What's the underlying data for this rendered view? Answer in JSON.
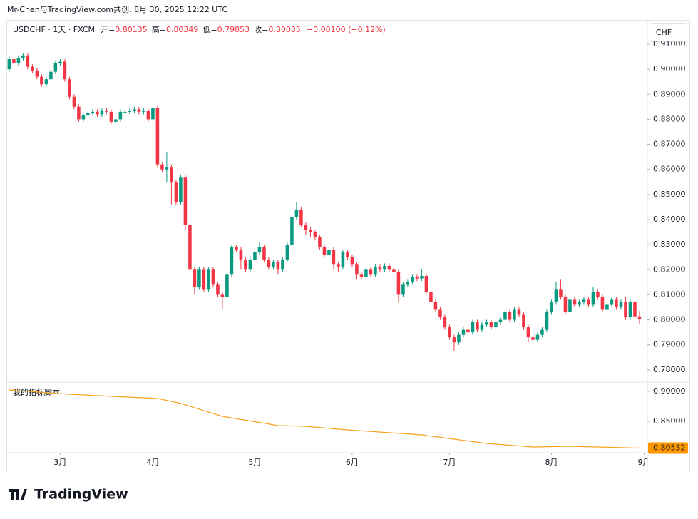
{
  "header": {
    "attribution": "Mr-Chen与TradingView.com共创, 8月 30, 2025 12:22 UTC",
    "symbol": "USDCHF · 1天 · FXCM",
    "open_label": "开=",
    "high_label": "高=",
    "low_label": "低=",
    "close_label": "收=",
    "change": "−0.00100 (−0.12%)",
    "currency": "CHF",
    "logo": "TradingView"
  },
  "chart_data": {
    "type": "candlestick",
    "up_color": "#089981",
    "down_color": "#f23645",
    "open": [
      0.9,
      0.904,
      0.9025,
      0.9045,
      0.9055,
      0.901,
      0.8995,
      0.897,
      0.894,
      0.896,
      0.899,
      0.9025,
      0.903,
      0.896,
      0.889,
      0.885,
      0.88,
      0.8815,
      0.8825,
      0.883,
      0.882,
      0.8835,
      0.883,
      0.879,
      0.88,
      0.883,
      0.883,
      0.8835,
      0.884,
      0.883,
      0.8835,
      0.88,
      0.8845,
      0.862,
      0.86,
      0.861,
      0.855,
      0.847,
      0.857,
      0.838,
      0.82,
      0.813,
      0.82,
      0.812,
      0.82,
      0.814,
      0.81,
      0.809,
      0.818,
      0.829,
      0.828,
      0.824,
      0.82,
      0.824,
      0.827,
      0.829,
      0.824,
      0.821,
      0.823,
      0.82,
      0.824,
      0.83,
      0.841,
      0.844,
      0.838,
      0.836,
      0.835,
      0.833,
      0.829,
      0.826,
      0.828,
      0.822,
      0.821,
      0.827,
      0.825,
      0.822,
      0.818,
      0.817,
      0.82,
      0.818,
      0.821,
      0.82,
      0.8215,
      0.82,
      0.819,
      0.81,
      0.814,
      0.815,
      0.817,
      0.8165,
      0.8175,
      0.811,
      0.807,
      0.804,
      0.801,
      0.797,
      0.793,
      0.791,
      0.794,
      0.796,
      0.795,
      0.799,
      0.796,
      0.798,
      0.799,
      0.797,
      0.799,
      0.8,
      0.803,
      0.8,
      0.804,
      0.802,
      0.797,
      0.793,
      0.792,
      0.794,
      0.796,
      0.803,
      0.807,
      0.812,
      0.809,
      0.803,
      0.808,
      0.806,
      0.807,
      0.808,
      0.806,
      0.811,
      0.809,
      0.804,
      0.806,
      0.808,
      0.805,
      0.807,
      0.801,
      0.807,
      0.80135
    ],
    "high": [
      0.905,
      0.905,
      0.9055,
      0.9065,
      0.9065,
      0.902,
      0.9005,
      0.898,
      0.897,
      0.9,
      0.9035,
      0.904,
      0.904,
      0.897,
      0.89,
      0.886,
      0.8825,
      0.8835,
      0.884,
      0.884,
      0.8845,
      0.8845,
      0.884,
      0.881,
      0.884,
      0.884,
      0.8845,
      0.885,
      0.885,
      0.8845,
      0.8845,
      0.8855,
      0.8855,
      0.863,
      0.867,
      0.862,
      0.856,
      0.858,
      0.858,
      0.839,
      0.821,
      0.821,
      0.821,
      0.821,
      0.821,
      0.815,
      0.811,
      0.819,
      0.83,
      0.83,
      0.829,
      0.825,
      0.825,
      0.829,
      0.831,
      0.83,
      0.825,
      0.824,
      0.824,
      0.825,
      0.831,
      0.842,
      0.847,
      0.845,
      0.839,
      0.837,
      0.836,
      0.834,
      0.83,
      0.829,
      0.829,
      0.823,
      0.828,
      0.828,
      0.826,
      0.823,
      0.819,
      0.821,
      0.821,
      0.822,
      0.822,
      0.8225,
      0.8225,
      0.821,
      0.82,
      0.815,
      0.816,
      0.818,
      0.818,
      0.82,
      0.8185,
      0.812,
      0.808,
      0.805,
      0.802,
      0.798,
      0.794,
      0.795,
      0.797,
      0.797,
      0.8,
      0.8,
      0.799,
      0.8,
      0.8,
      0.8,
      0.801,
      0.804,
      0.804,
      0.805,
      0.805,
      0.803,
      0.798,
      0.794,
      0.795,
      0.797,
      0.804,
      0.808,
      0.815,
      0.816,
      0.81,
      0.812,
      0.809,
      0.808,
      0.809,
      0.809,
      0.813,
      0.812,
      0.81,
      0.807,
      0.809,
      0.809,
      0.808,
      0.809,
      0.808,
      0.808,
      0.80349
    ],
    "low": [
      0.899,
      0.9015,
      0.9015,
      0.9035,
      0.9,
      0.8985,
      0.896,
      0.893,
      0.893,
      0.895,
      0.898,
      0.9015,
      0.895,
      0.888,
      0.884,
      0.879,
      0.879,
      0.8805,
      0.8815,
      0.881,
      0.881,
      0.882,
      0.878,
      0.878,
      0.879,
      0.882,
      0.882,
      0.8825,
      0.882,
      0.882,
      0.879,
      0.879,
      0.861,
      0.859,
      0.855,
      0.846,
      0.846,
      0.846,
      0.836,
      0.819,
      0.81,
      0.812,
      0.811,
      0.811,
      0.813,
      0.809,
      0.804,
      0.806,
      0.817,
      0.827,
      0.82,
      0.819,
      0.819,
      0.823,
      0.826,
      0.823,
      0.82,
      0.82,
      0.818,
      0.819,
      0.823,
      0.829,
      0.84,
      0.837,
      0.834,
      0.833,
      0.832,
      0.828,
      0.825,
      0.824,
      0.82,
      0.819,
      0.82,
      0.824,
      0.821,
      0.816,
      0.816,
      0.816,
      0.817,
      0.817,
      0.819,
      0.819,
      0.819,
      0.818,
      0.807,
      0.809,
      0.813,
      0.814,
      0.8155,
      0.8155,
      0.81,
      0.806,
      0.803,
      0.8,
      0.796,
      0.792,
      0.7875,
      0.79,
      0.793,
      0.794,
      0.794,
      0.795,
      0.795,
      0.797,
      0.796,
      0.796,
      0.798,
      0.799,
      0.799,
      0.799,
      0.801,
      0.796,
      0.791,
      0.791,
      0.791,
      0.793,
      0.795,
      0.802,
      0.806,
      0.808,
      0.802,
      0.802,
      0.805,
      0.805,
      0.806,
      0.805,
      0.805,
      0.808,
      0.803,
      0.803,
      0.805,
      0.804,
      0.804,
      0.8,
      0.8,
      0.8005,
      0.79853
    ],
    "close": [
      0.904,
      0.9025,
      0.9045,
      0.9055,
      0.901,
      0.8995,
      0.897,
      0.894,
      0.896,
      0.899,
      0.9025,
      0.903,
      0.896,
      0.889,
      0.885,
      0.88,
      0.8815,
      0.8825,
      0.883,
      0.882,
      0.8835,
      0.883,
      0.879,
      0.88,
      0.883,
      0.883,
      0.8835,
      0.884,
      0.883,
      0.8835,
      0.88,
      0.8845,
      0.862,
      0.86,
      0.861,
      0.855,
      0.847,
      0.857,
      0.838,
      0.82,
      0.813,
      0.82,
      0.812,
      0.82,
      0.814,
      0.81,
      0.809,
      0.818,
      0.829,
      0.828,
      0.824,
      0.82,
      0.824,
      0.827,
      0.829,
      0.824,
      0.821,
      0.823,
      0.82,
      0.824,
      0.83,
      0.841,
      0.844,
      0.838,
      0.836,
      0.835,
      0.833,
      0.829,
      0.826,
      0.828,
      0.822,
      0.821,
      0.827,
      0.825,
      0.822,
      0.818,
      0.817,
      0.82,
      0.818,
      0.821,
      0.82,
      0.8215,
      0.82,
      0.819,
      0.81,
      0.814,
      0.815,
      0.817,
      0.8165,
      0.8175,
      0.811,
      0.807,
      0.804,
      0.801,
      0.797,
      0.793,
      0.791,
      0.794,
      0.796,
      0.795,
      0.799,
      0.796,
      0.798,
      0.799,
      0.797,
      0.799,
      0.8,
      0.803,
      0.8,
      0.804,
      0.802,
      0.797,
      0.793,
      0.792,
      0.794,
      0.796,
      0.803,
      0.807,
      0.812,
      0.809,
      0.803,
      0.808,
      0.806,
      0.807,
      0.808,
      0.806,
      0.811,
      0.809,
      0.804,
      0.806,
      0.808,
      0.805,
      0.807,
      0.801,
      0.807,
      0.80135,
      0.80035
    ],
    "xlim": [
      -0.6,
      137.7
    ],
    "xticks": [
      {
        "value": 11,
        "label": "3月"
      },
      {
        "value": 31,
        "label": "4月"
      },
      {
        "value": 53,
        "label": "5月"
      },
      {
        "value": 74,
        "label": "6月"
      },
      {
        "value": 95,
        "label": "7月"
      },
      {
        "value": 117,
        "label": "8月"
      },
      {
        "value": 137,
        "label": "9月"
      }
    ],
    "ylim": [
      0.7754,
      0.9191
    ],
    "yticks": [
      {
        "value": 0.78,
        "label": "0.78000"
      },
      {
        "value": 0.79,
        "label": "0.79000"
      },
      {
        "value": 0.8,
        "label": "0.80000"
      },
      {
        "value": 0.81,
        "label": "0.81000"
      },
      {
        "value": 0.82,
        "label": "0.82000"
      },
      {
        "value": 0.83,
        "label": "0.83000"
      },
      {
        "value": 0.84,
        "label": "0.84000"
      },
      {
        "value": 0.85,
        "label": "0.85000"
      },
      {
        "value": 0.86,
        "label": "0.86000"
      },
      {
        "value": 0.87,
        "label": "0.87000"
      },
      {
        "value": 0.88,
        "label": "0.88000"
      },
      {
        "value": 0.89,
        "label": "0.89000"
      },
      {
        "value": 0.9,
        "label": "0.90000"
      },
      {
        "value": 0.91,
        "label": "0.91000"
      }
    ],
    "indicator": {
      "name": "我的指标脚本",
      "color": "#f7a21b",
      "x": [
        0,
        13,
        32,
        37,
        46,
        58,
        64,
        73,
        89,
        103,
        113,
        121,
        136
      ],
      "values": [
        0.9024,
        0.8952,
        0.8881,
        0.88,
        0.8583,
        0.8429,
        0.8417,
        0.8357,
        0.8274,
        0.8131,
        0.8071,
        0.8083,
        0.80532
      ],
      "ylim": [
        0.7976,
        0.9143
      ],
      "yticks": [
        {
          "value": 0.9,
          "label": "0.90000"
        },
        {
          "value": 0.85,
          "label": "0.85000"
        }
      ]
    }
  }
}
